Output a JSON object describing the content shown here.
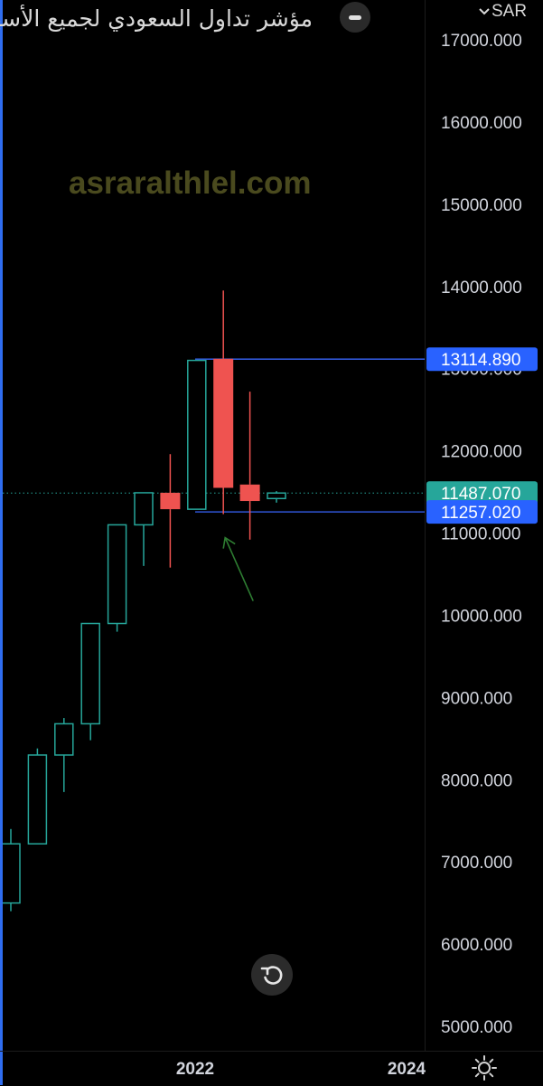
{
  "header": {
    "title": "مؤشر تداول السعودي لجميع الأسهم",
    "currency": "SAR"
  },
  "watermark": "asraralthlel.com",
  "colors": {
    "up": "#26a69a",
    "down": "#ef5350",
    "level_line": "#2f55d4",
    "last_price_badge": "#26a69a",
    "level_badge": "#2962ff",
    "arrow": "#2e7d32",
    "axis_text": "#d1d4dc"
  },
  "icons": {
    "collapse": "minus-icon",
    "currency_menu": "chevron-down-icon",
    "reset": "reset-rotate-icon",
    "settings": "sun-gear-icon"
  },
  "chart_data": {
    "type": "candlestick",
    "timeframe_unit": "quarter",
    "y_axis": {
      "ticks": [
        "5000.000",
        "6000.000",
        "7000.000",
        "8000.000",
        "9000.000",
        "10000.000",
        "11000.000",
        "12000.000",
        "13000.000",
        "14000.000",
        "15000.000",
        "16000.000",
        "17000.000"
      ],
      "range": [
        4950,
        17150
      ]
    },
    "x_axis": {
      "ticks": [
        "2022",
        "2024"
      ]
    },
    "candles": [
      {
        "open": 6500,
        "high": 7400,
        "low": 6400,
        "close": 7220,
        "dir": "up"
      },
      {
        "open": 7220,
        "high": 8380,
        "low": 7220,
        "close": 8300,
        "dir": "up"
      },
      {
        "open": 8300,
        "high": 8750,
        "low": 7850,
        "close": 8680,
        "dir": "up"
      },
      {
        "open": 8680,
        "high": 9900,
        "low": 8480,
        "close": 9900,
        "dir": "up"
      },
      {
        "open": 9900,
        "high": 11100,
        "low": 9800,
        "close": 11100,
        "dir": "up"
      },
      {
        "open": 11100,
        "high": 11490,
        "low": 10600,
        "close": 11490,
        "dir": "up"
      },
      {
        "open": 11490,
        "high": 11960,
        "low": 10580,
        "close": 11290,
        "dir": "down"
      },
      {
        "open": 11290,
        "high": 13100,
        "low": 11290,
        "close": 13100,
        "dir": "up"
      },
      {
        "open": 13120,
        "high": 13950,
        "low": 11230,
        "close": 11550,
        "dir": "down"
      },
      {
        "open": 11590,
        "high": 12720,
        "low": 10920,
        "close": 11390,
        "dir": "down"
      },
      {
        "open": 11420,
        "high": 11510,
        "low": 11370,
        "close": 11487,
        "dir": "up"
      }
    ],
    "horizontal_levels": [
      {
        "label": "13114.890",
        "value": 13114.89
      },
      {
        "label": "11257.020",
        "value": 11257.02
      }
    ],
    "last_price": {
      "label": "11487.070",
      "value": 11487.07
    },
    "annotations": [
      {
        "type": "arrow",
        "points_to_candle": 8
      }
    ]
  }
}
